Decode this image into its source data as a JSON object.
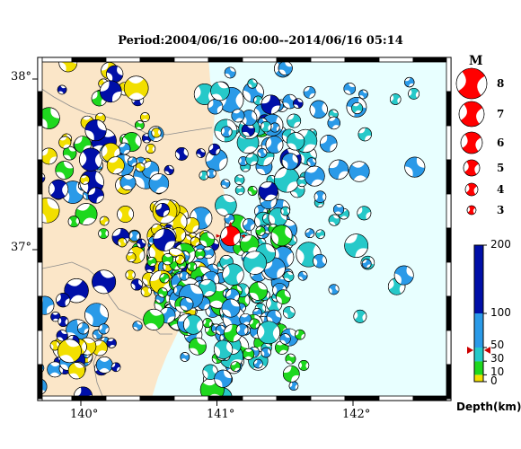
{
  "title": "Period:2004/06/16 00:00--2014/06/16 05:14",
  "longitude_labels": [
    "140°",
    "141°",
    "142°"
  ],
  "latitude_labels": [
    "38°",
    "37°"
  ],
  "magnitude_legend": {
    "title": "M",
    "items": [
      "8",
      "7",
      "6",
      "5",
      "4",
      "3"
    ]
  },
  "depth_colorbar": {
    "labels": [
      "200",
      "100",
      "50",
      "30",
      "10",
      "0"
    ],
    "unit_label": "Depth(km)",
    "colors": [
      "#f2df00",
      "#1ed81e",
      "#26c9c9",
      "#2a9ae8",
      "#000fa8"
    ],
    "highlight_depth": 46
  },
  "colors": {
    "land": "#fbe6c8",
    "sea": "#e8ffff",
    "highlight_event": "#ff0000",
    "frame": "#000000"
  },
  "highlight_event": {
    "lon": 141.1,
    "lat": 37.08,
    "magnitude": 6
  }
}
